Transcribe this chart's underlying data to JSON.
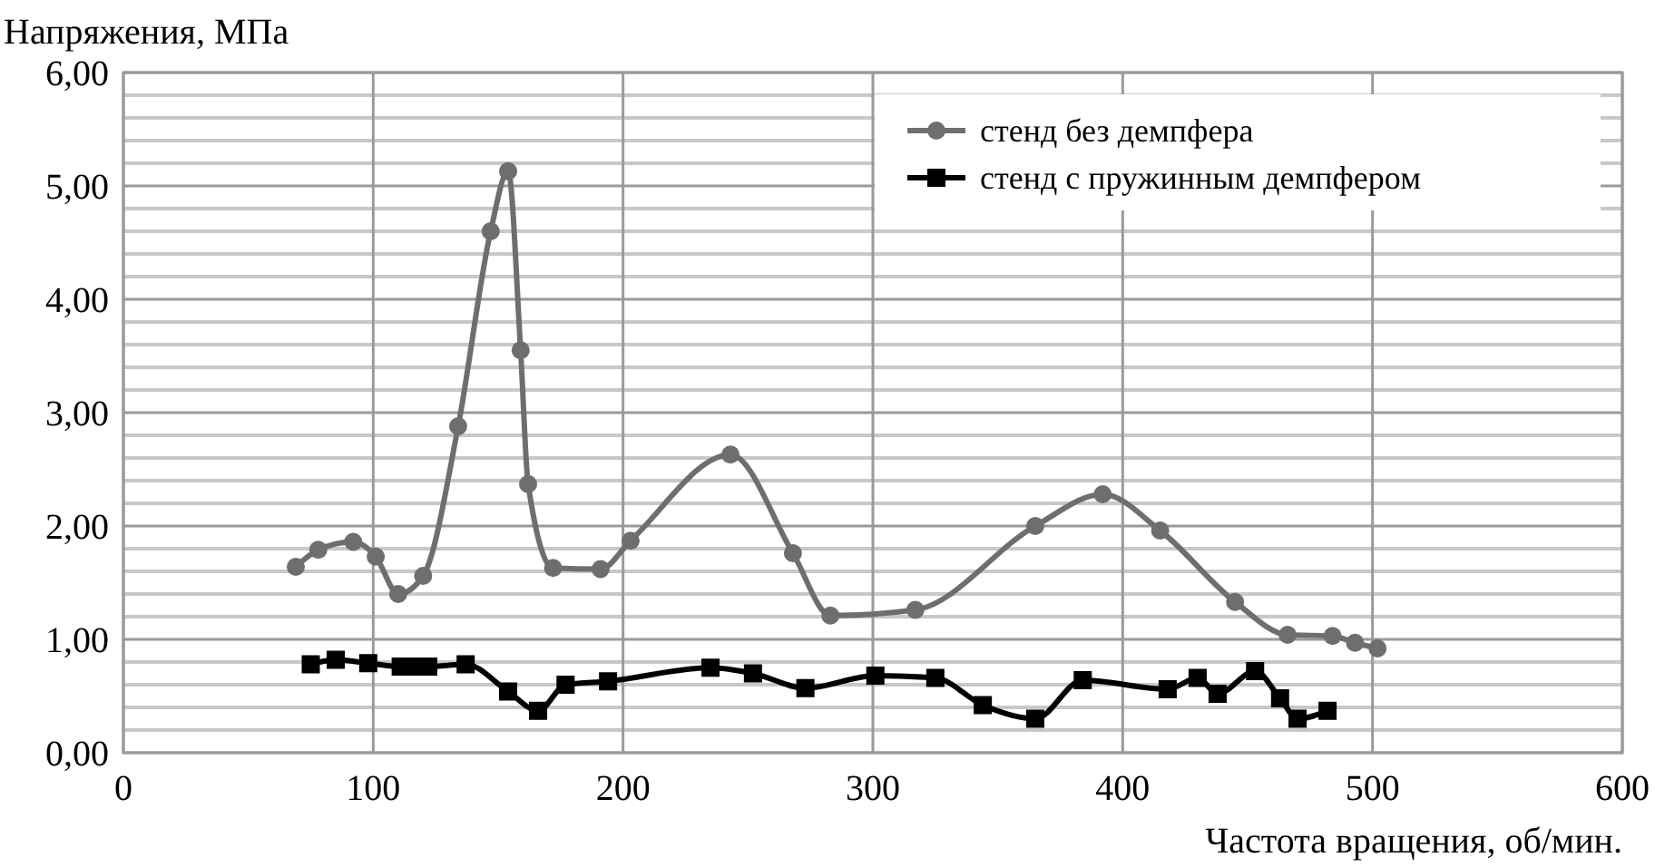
{
  "chart_data": {
    "type": "line",
    "xlabel": "Частота вращения, об/мин.",
    "ylabel": "Напряжения, МПа",
    "xlim": [
      0,
      600
    ],
    "xticks": [
      0,
      100,
      200,
      300,
      400,
      500,
      600
    ],
    "ylim": [
      0,
      6
    ],
    "yticks": [
      {
        "value": 0,
        "label": "0,00"
      },
      {
        "value": 0.2,
        "label": null
      },
      {
        "value": 0.4,
        "label": null
      },
      {
        "value": 0.6,
        "label": null
      },
      {
        "value": 0.8,
        "label": null
      },
      {
        "value": 1,
        "label": "1,00"
      },
      {
        "value": 1.2,
        "label": null
      },
      {
        "value": 1.4,
        "label": null
      },
      {
        "value": 1.6,
        "label": null
      },
      {
        "value": 1.8,
        "label": null
      },
      {
        "value": 2,
        "label": "2,00"
      },
      {
        "value": 2.2,
        "label": null
      },
      {
        "value": 2.4,
        "label": null
      },
      {
        "value": 2.6,
        "label": null
      },
      {
        "value": 2.8,
        "label": null
      },
      {
        "value": 3,
        "label": "3,00"
      },
      {
        "value": 3.2,
        "label": null
      },
      {
        "value": 3.4,
        "label": null
      },
      {
        "value": 3.6,
        "label": null
      },
      {
        "value": 3.8,
        "label": null
      },
      {
        "value": 4,
        "label": "4,00"
      },
      {
        "value": 4.2,
        "label": null
      },
      {
        "value": 4.4,
        "label": null
      },
      {
        "value": 4.6,
        "label": null
      },
      {
        "value": 4.8,
        "label": null
      },
      {
        "value": 5,
        "label": "5,00"
      },
      {
        "value": 5.2,
        "label": null
      },
      {
        "value": 5.4,
        "label": null
      },
      {
        "value": 5.6,
        "label": null
      },
      {
        "value": 5.8,
        "label": null
      },
      {
        "value": 6,
        "label": "6,00"
      }
    ],
    "grid": true,
    "legend": "top right",
    "line_style": "solid",
    "series": [
      {
        "name": "стенд без демпфера",
        "color": "#6e6e6e",
        "marker": "circle",
        "x": [
          69,
          78,
          92,
          101,
          110,
          120,
          134,
          147,
          154,
          159,
          162,
          172,
          191,
          203,
          243,
          268,
          283,
          317,
          365,
          392,
          415,
          445,
          466,
          484,
          493,
          502
        ],
        "values": [
          1.64,
          1.79,
          1.86,
          1.73,
          1.4,
          1.56,
          2.88,
          4.6,
          5.13,
          3.55,
          2.37,
          1.63,
          1.62,
          1.87,
          2.63,
          1.76,
          1.21,
          1.26,
          2.0,
          2.28,
          1.96,
          1.33,
          1.04,
          1.03,
          0.97,
          0.92
        ]
      },
      {
        "name": "стенд с пружинным демпфером",
        "color": "#000000",
        "marker": "square",
        "x": [
          75,
          85,
          98,
          111,
          117,
          122,
          137,
          154,
          166,
          177,
          194,
          235,
          252,
          273,
          301,
          325,
          344,
          365,
          384,
          418,
          430,
          438,
          453,
          463,
          470,
          482
        ],
        "values": [
          0.78,
          0.82,
          0.79,
          0.76,
          0.76,
          0.76,
          0.78,
          0.54,
          0.37,
          0.6,
          0.63,
          0.75,
          0.7,
          0.57,
          0.68,
          0.66,
          0.42,
          0.3,
          0.64,
          0.56,
          0.66,
          0.52,
          0.72,
          0.48,
          0.3,
          0.37
        ]
      }
    ]
  }
}
